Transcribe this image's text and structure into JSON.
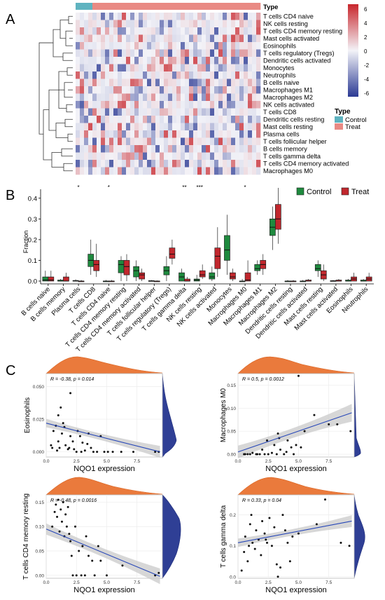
{
  "panel_labels": [
    "A",
    "B",
    "C"
  ],
  "heatmap": {
    "type_title": "Type",
    "legend_title": "Type",
    "legend_items": [
      "Control",
      "Treat"
    ],
    "colorbar_ticks": [
      "6",
      "4",
      "2",
      "0",
      "-2",
      "-4",
      "-6"
    ],
    "rows": [
      "T cells CD4 naive",
      "NK cells resting",
      "T cells CD4 memory resting",
      "Mast cells activated",
      "Eosinophils",
      "T cells regulatory (Tregs)",
      "Dendritic cells activated",
      "Monocytes",
      "Neutrophils",
      "B cells naive",
      "Macrophages M1",
      "Macrophages M2",
      "NK cells activated",
      "T cells CD8",
      "Dendritic cells resting",
      "Mast cells resting",
      "Plasma cells",
      "T cells follicular helper",
      "B cells memory",
      "T cells gamma delta",
      "T cells CD4 memory activated",
      "Macrophages M0"
    ],
    "n_control": 4,
    "n_treat": 40,
    "colors": {
      "control": "#5fb3c0",
      "treat": "#e98a84",
      "high": "#c8262c",
      "low": "#2b3a94",
      "mid": "#f3f3f8"
    }
  },
  "chart_data": [
    {
      "type": "box",
      "ylabel": "Fraction",
      "yticks": [
        "0.0",
        "0.1",
        "0.2",
        "0.3",
        "0.4"
      ],
      "ylim": [
        0,
        0.45
      ],
      "legend": [
        "Control",
        "Treat"
      ],
      "colors": {
        "Control": "#1e8a3e",
        "Treat": "#c1272d"
      },
      "categories": [
        "B cells naive",
        "B cells memory",
        "Plasma cells",
        "T cells CD8",
        "T cells CD4 naive",
        "T cells CD4 memory resting",
        "T cells CD4 memory activated",
        "T cells follicular helper",
        "T cells regulatory (Tregs)",
        "T cells gamma delta",
        "NK cells resting",
        "NK cells activated",
        "Monocytes",
        "Macrophages M0",
        "Macrophages M1",
        "Macrophages M2",
        "Dendritic cells resting",
        "Dendritic cells activated",
        "Mast cells resting",
        "Mast cells activated",
        "Eosinophils",
        "Neutrophils"
      ],
      "significance": [
        "",
        "",
        "*",
        "",
        "*",
        "",
        "",
        "",
        "",
        "**",
        "***",
        "",
        "",
        "*",
        "",
        "",
        "",
        "",
        "",
        "",
        "",
        ""
      ],
      "series": [
        {
          "name": "Control",
          "boxes": [
            [
              0,
              0,
              0.005,
              0.02,
              0.05
            ],
            [
              0,
              0,
              0,
              0.005,
              0.01
            ],
            [
              0,
              0,
              0,
              0.003,
              0.008
            ],
            [
              0.03,
              0.07,
              0.1,
              0.13,
              0.2
            ],
            [
              0,
              0,
              0,
              0,
              0.005
            ],
            [
              0,
              0.04,
              0.08,
              0.1,
              0.12
            ],
            [
              0,
              0.02,
              0.05,
              0.07,
              0.1
            ],
            [
              0,
              0,
              0,
              0.002,
              0.005
            ],
            [
              0,
              0.03,
              0.05,
              0.07,
              0.12
            ],
            [
              0,
              0,
              0.02,
              0.04,
              0.06
            ],
            [
              0,
              0,
              0.005,
              0.01,
              0.03
            ],
            [
              0,
              0.01,
              0.02,
              0.04,
              0.07
            ],
            [
              0.03,
              0.1,
              0.15,
              0.22,
              0.32
            ],
            [
              0,
              0,
              0,
              0,
              0.01
            ],
            [
              0.03,
              0.05,
              0.06,
              0.08,
              0.1
            ],
            [
              0.15,
              0.22,
              0.26,
              0.3,
              0.36
            ],
            [
              0,
              0,
              0,
              0,
              0.005
            ],
            [
              0,
              0,
              0,
              0,
              0.005
            ],
            [
              0.02,
              0.05,
              0.06,
              0.08,
              0.1
            ],
            [
              0,
              0,
              0,
              0.002,
              0.005
            ],
            [
              0,
              0,
              0,
              0.005,
              0.01
            ],
            [
              0,
              0,
              0,
              0.005,
              0.01
            ]
          ]
        },
        {
          "name": "Treat",
          "boxes": [
            [
              0,
              0,
              0.005,
              0.02,
              0.05
            ],
            [
              0,
              0,
              0,
              0.02,
              0.04
            ],
            [
              0,
              0,
              0,
              0,
              0.005
            ],
            [
              0.02,
              0.05,
              0.08,
              0.1,
              0.18
            ],
            [
              0,
              0,
              0,
              0,
              0.005
            ],
            [
              0,
              0.03,
              0.07,
              0.1,
              0.13
            ],
            [
              0,
              0.01,
              0.03,
              0.04,
              0.06
            ],
            [
              0,
              0,
              0,
              0,
              0.003
            ],
            [
              0.08,
              0.11,
              0.13,
              0.16,
              0.2
            ],
            [
              0,
              0,
              0,
              0.01,
              0.02
            ],
            [
              0.01,
              0.02,
              0.03,
              0.05,
              0.08
            ],
            [
              0.02,
              0.06,
              0.12,
              0.16,
              0.26
            ],
            [
              0,
              0.01,
              0.02,
              0.04,
              0.06
            ],
            [
              0,
              0,
              0.005,
              0.04,
              0.1
            ],
            [
              0.03,
              0.06,
              0.08,
              0.1,
              0.13
            ],
            [
              0.18,
              0.25,
              0.3,
              0.37,
              0.45
            ],
            [
              0,
              0,
              0,
              0,
              0.005
            ],
            [
              0,
              0,
              0,
              0.005,
              0.01
            ],
            [
              0,
              0.01,
              0.03,
              0.05,
              0.08
            ],
            [
              0,
              0,
              0,
              0.005,
              0.01
            ],
            [
              0,
              0,
              0.01,
              0.02,
              0.04
            ],
            [
              0,
              0,
              0.01,
              0.02,
              0.04
            ]
          ]
        }
      ]
    },
    {
      "type": "scatter",
      "xlabel": "NQO1 expression",
      "ylabel": "Eosinophils",
      "annotation": "R = -0.38, p = 0.014",
      "xticks": [
        "0.0",
        "2.5",
        "5.0",
        "7.5"
      ],
      "yticks": [
        "0.000",
        "0.025",
        "0.050"
      ],
      "xlim": [
        0,
        9.6
      ],
      "ylim": [
        -0.004,
        0.06
      ],
      "points": [
        [
          0.4,
          0.005
        ],
        [
          0.6,
          0.016
        ],
        [
          0.8,
          0.02
        ],
        [
          0.9,
          0.001
        ],
        [
          1.0,
          0.028
        ],
        [
          1.0,
          0.008
        ],
        [
          1.2,
          0.034
        ],
        [
          1.3,
          0.014
        ],
        [
          1.4,
          0.022
        ],
        [
          1.5,
          0.019
        ],
        [
          1.6,
          0.005
        ],
        [
          1.8,
          0.002
        ],
        [
          2.0,
          0.045
        ],
        [
          2.0,
          0.012
        ],
        [
          2.2,
          0.008
        ],
        [
          2.3,
          0.002
        ],
        [
          2.5,
          0.0
        ],
        [
          2.6,
          0.016
        ],
        [
          2.8,
          0.012
        ],
        [
          3.0,
          0.007
        ],
        [
          3.2,
          0.001
        ],
        [
          3.4,
          0.006
        ],
        [
          3.5,
          0.014
        ],
        [
          3.7,
          0.003
        ],
        [
          3.9,
          0.0
        ],
        [
          4.2,
          0.0
        ],
        [
          4.5,
          0.012
        ],
        [
          4.8,
          0.0
        ],
        [
          5.1,
          0.0
        ],
        [
          5.5,
          0.0
        ],
        [
          6.2,
          0.0
        ],
        [
          7.2,
          0.0
        ],
        [
          9.0,
          0.0
        ],
        [
          9.3,
          0.0
        ],
        [
          0.5,
          0.003
        ],
        [
          1.1,
          0.003
        ],
        [
          1.9,
          0.003
        ],
        [
          2.9,
          0.0
        ]
      ],
      "fit": [
        [
          0,
          0.022
        ],
        [
          9.4,
          0.0
        ]
      ]
    },
    {
      "type": "scatter",
      "xlabel": "NQO1 expression",
      "ylabel": "Macrophages M0",
      "annotation": "R = 0.5, p = 0.0012",
      "xticks": [
        "0.0",
        "2.5",
        "5.0",
        "7.5"
      ],
      "yticks": [
        "0.00",
        "0.05",
        "0.10",
        "0.15"
      ],
      "xlim": [
        0,
        9.6
      ],
      "ylim": [
        -0.006,
        0.175
      ],
      "points": [
        [
          0.5,
          0.0
        ],
        [
          0.8,
          0.0
        ],
        [
          1.0,
          0.0
        ],
        [
          1.2,
          0.003
        ],
        [
          1.5,
          0.0
        ],
        [
          1.8,
          0.0
        ],
        [
          2.0,
          0.01
        ],
        [
          2.2,
          0.0
        ],
        [
          2.5,
          0.0
        ],
        [
          2.8,
          0.003
        ],
        [
          3.0,
          0.02
        ],
        [
          3.2,
          0.0
        ],
        [
          3.4,
          0.035
        ],
        [
          3.5,
          0.01
        ],
        [
          3.8,
          0.0
        ],
        [
          4.0,
          0.005
        ],
        [
          4.1,
          0.03
        ],
        [
          4.4,
          0.015
        ],
        [
          4.6,
          0.0
        ],
        [
          4.8,
          0.02
        ],
        [
          5.2,
          0.015
        ],
        [
          5.5,
          0.05
        ],
        [
          6.3,
          0.085
        ],
        [
          5.0,
          0.17
        ],
        [
          7.5,
          0.065
        ],
        [
          8.2,
          0.065
        ],
        [
          9.3,
          0.05
        ],
        [
          2.4,
          0.03
        ],
        [
          3.3,
          0.045
        ],
        [
          1.6,
          0.0
        ],
        [
          0.6,
          0.0
        ]
      ],
      "fit": [
        [
          0,
          0.005
        ],
        [
          9.4,
          0.09
        ]
      ]
    },
    {
      "type": "scatter",
      "xlabel": "NQO1 expression",
      "ylabel": "T cells CD4 memory resting",
      "annotation": "R = -0.48, p = 0.0016",
      "xticks": [
        "0.0",
        "2.5",
        "5.0",
        "7.5"
      ],
      "yticks": [
        "0.00",
        "0.05",
        "0.10",
        "0.15"
      ],
      "xlim": [
        0,
        9.6
      ],
      "ylim": [
        -0.006,
        0.165
      ],
      "points": [
        [
          0.5,
          0.1
        ],
        [
          0.7,
          0.13
        ],
        [
          0.9,
          0.12
        ],
        [
          1.0,
          0.155
        ],
        [
          1.1,
          0.09
        ],
        [
          1.2,
          0.135
        ],
        [
          1.3,
          0.11
        ],
        [
          1.4,
          0.15
        ],
        [
          1.5,
          0.08
        ],
        [
          1.6,
          0.125
        ],
        [
          1.7,
          0.1
        ],
        [
          1.8,
          0.14
        ],
        [
          2.0,
          0.07
        ],
        [
          2.1,
          0.04
        ],
        [
          2.2,
          0.0
        ],
        [
          2.4,
          0.1
        ],
        [
          2.5,
          0.0
        ],
        [
          2.7,
          0.05
        ],
        [
          2.9,
          0.0
        ],
        [
          3.0,
          0.06
        ],
        [
          3.2,
          0.0
        ],
        [
          3.3,
          0.08
        ],
        [
          3.5,
          0.04
        ],
        [
          3.8,
          0.03
        ],
        [
          4.0,
          0.0
        ],
        [
          4.3,
          0.06
        ],
        [
          4.5,
          0.03
        ],
        [
          5.0,
          0.0
        ],
        [
          6.3,
          0.02
        ],
        [
          9.0,
          0.0
        ],
        [
          9.3,
          0.005
        ],
        [
          0.8,
          0.145
        ],
        [
          1.9,
          0.085
        ]
      ],
      "fit": [
        [
          0,
          0.095
        ],
        [
          9.4,
          -0.002
        ]
      ]
    },
    {
      "type": "scatter",
      "xlabel": "NQO1 expression",
      "ylabel": "T cells gamma delta",
      "annotation": "R = 0.33, p = 0.04",
      "xticks": [
        "0.0",
        "2.5",
        "5.0",
        "7.5"
      ],
      "yticks": [
        "0.0",
        "0.1",
        "0.2"
      ],
      "xlim": [
        0,
        9.6
      ],
      "ylim": [
        -0.005,
        0.265
      ],
      "points": [
        [
          0.3,
          0.02
        ],
        [
          0.5,
          0.08
        ],
        [
          0.6,
          0.13
        ],
        [
          0.8,
          0.05
        ],
        [
          0.9,
          0.1
        ],
        [
          1.0,
          0.17
        ],
        [
          1.2,
          0.11
        ],
        [
          1.4,
          0.09
        ],
        [
          1.5,
          0.15
        ],
        [
          1.7,
          0.12
        ],
        [
          1.9,
          0.07
        ],
        [
          2.0,
          0.18
        ],
        [
          2.2,
          0.14
        ],
        [
          2.4,
          0.11
        ],
        [
          2.6,
          0.19
        ],
        [
          2.8,
          0.1
        ],
        [
          3.0,
          0.16
        ],
        [
          3.2,
          0.04
        ],
        [
          3.5,
          0.03
        ],
        [
          3.7,
          0.2
        ],
        [
          3.9,
          0.15
        ],
        [
          4.1,
          0.11
        ],
        [
          4.3,
          0.05
        ],
        [
          4.5,
          0.13
        ],
        [
          5.0,
          0.14
        ],
        [
          6.5,
          0.17
        ],
        [
          7.2,
          0.25
        ],
        [
          8.5,
          0.11
        ],
        [
          9.2,
          0.1
        ],
        [
          3.3,
          0.0
        ],
        [
          2.3,
          0.12
        ],
        [
          1.1,
          0.2
        ]
      ],
      "fit": [
        [
          0,
          0.11
        ],
        [
          9.4,
          0.18
        ]
      ]
    }
  ]
}
